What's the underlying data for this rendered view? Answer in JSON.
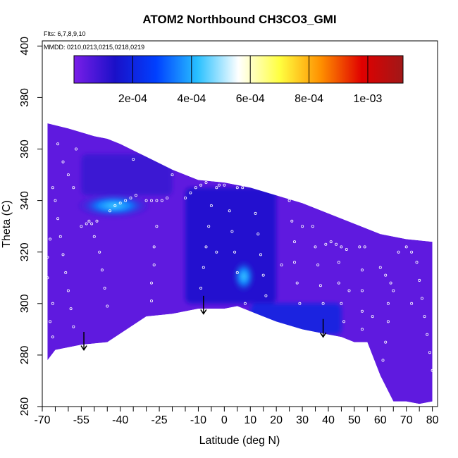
{
  "chart_data": {
    "type": "heatmap",
    "title": "ATOM2 Northbound CH3CO3_GMI",
    "annotations": {
      "flights": "Flts: 6,7,8,9,10",
      "dates": "MMDD: 0210,0213,0215,0218,0219"
    },
    "xlabel": "Latitude (deg N)",
    "ylabel": "Theta (C)",
    "xlim": [
      -70,
      82
    ],
    "ylim": [
      260,
      402
    ],
    "x_ticks": [
      -70,
      -55,
      -40,
      -25,
      -10,
      0,
      10,
      20,
      30,
      40,
      50,
      60,
      70,
      80
    ],
    "x_tick_labels": [
      "-70",
      "-55",
      "-40",
      "-25",
      "-10",
      "0",
      "10",
      "20",
      "30",
      "40",
      "50",
      "60",
      "70",
      "80"
    ],
    "x_minor_ticks": [
      -65,
      -60,
      -50,
      -45,
      -35,
      -30,
      -20,
      -15,
      -5,
      5,
      15,
      25,
      35,
      45,
      55,
      65,
      75
    ],
    "y_ticks": [
      260,
      280,
      300,
      320,
      340,
      360,
      380,
      400
    ],
    "y_tick_labels": [
      "260",
      "280",
      "300",
      "320",
      "340",
      "360",
      "380",
      "400"
    ],
    "colorbar": {
      "range": [
        0,
        0.00112
      ],
      "ticks": [
        0.0002,
        0.0004,
        0.0006,
        0.0008,
        0.001
      ],
      "tick_labels": [
        "2e-04",
        "4e-04",
        "6e-04",
        "8e-04",
        "1e-03"
      ],
      "colors": [
        "#7a1ee8",
        "#1a10c8",
        "#0040ff",
        "#28c0ff",
        "#ffffff",
        "#ffff40",
        "#ff9000",
        "#e00000",
        "#a01818"
      ]
    },
    "domain_top": [
      [
        -68,
        370
      ],
      [
        -60,
        368
      ],
      [
        -50,
        365
      ],
      [
        -45,
        364
      ],
      [
        -40,
        362
      ],
      [
        -30,
        357
      ],
      [
        -20,
        352
      ],
      [
        -10,
        348
      ],
      [
        0,
        347
      ],
      [
        10,
        345
      ],
      [
        20,
        342
      ],
      [
        30,
        339
      ],
      [
        40,
        335
      ],
      [
        50,
        331
      ],
      [
        60,
        327
      ],
      [
        70,
        325
      ],
      [
        80,
        324
      ]
    ],
    "domain_bottom": [
      [
        -68,
        278
      ],
      [
        -65,
        282
      ],
      [
        -55,
        284
      ],
      [
        -45,
        285
      ],
      [
        -30,
        295
      ],
      [
        -20,
        296
      ],
      [
        -10,
        298
      ],
      [
        0,
        298
      ],
      [
        5,
        299
      ],
      [
        15,
        295
      ],
      [
        20,
        293
      ],
      [
        30,
        290
      ],
      [
        40,
        288
      ],
      [
        45,
        287
      ],
      [
        50,
        285
      ],
      [
        55,
        285
      ],
      [
        60,
        272
      ],
      [
        65,
        262
      ],
      [
        70,
        262
      ],
      [
        75,
        261
      ],
      [
        80,
        262
      ]
    ],
    "background_value": 4e-05,
    "features": [
      {
        "name": "upper southern layer",
        "x": [
          -55,
          -20
        ],
        "y": [
          342,
          358
        ],
        "value": 0.0001
      },
      {
        "name": "southern upper maximum",
        "x": [
          -55,
          -30
        ],
        "y": [
          335,
          341
        ],
        "value": 0.0004
      },
      {
        "name": "central dark column",
        "x": [
          -15,
          20
        ],
        "y": [
          300,
          345
        ],
        "value": 0.00015
      },
      {
        "name": "equatorial maximum",
        "x": [
          5,
          10
        ],
        "y": [
          306,
          315
        ],
        "value": 0.0004
      },
      {
        "name": "lower northern band",
        "x": [
          10,
          45
        ],
        "y": [
          288,
          300
        ],
        "value": 0.0002
      }
    ],
    "arrows": [
      {
        "x": -54,
        "y_from": 289,
        "y_to": 282
      },
      {
        "x": -8,
        "y_from": 303,
        "y_to": 296
      },
      {
        "x": 38,
        "y_from": 294,
        "y_to": 287
      }
    ],
    "flight_track_points": [
      [
        -65,
        340
      ],
      [
        -64,
        333
      ],
      [
        -63,
        326
      ],
      [
        -62,
        319
      ],
      [
        -61,
        312
      ],
      [
        -60,
        305
      ],
      [
        -59,
        298
      ],
      [
        -58,
        291
      ],
      [
        -66,
        300
      ],
      [
        -67,
        293
      ],
      [
        -66,
        287
      ],
      [
        -62,
        355
      ],
      [
        -60,
        350
      ],
      [
        -58,
        345
      ],
      [
        -52,
        332
      ],
      [
        -50,
        326
      ],
      [
        -48,
        320
      ],
      [
        -47,
        313
      ],
      [
        -46,
        306
      ],
      [
        -45,
        299
      ],
      [
        -55,
        330
      ],
      [
        -53,
        331
      ],
      [
        -51,
        331
      ],
      [
        -49,
        332
      ],
      [
        -44,
        336
      ],
      [
        -42,
        338
      ],
      [
        -40,
        339
      ],
      [
        -38,
        340
      ],
      [
        -36,
        341
      ],
      [
        -34,
        342
      ],
      [
        -30,
        340
      ],
      [
        -28,
        340
      ],
      [
        -26,
        340
      ],
      [
        -24,
        340
      ],
      [
        -22,
        341
      ],
      [
        -26,
        330
      ],
      [
        -27,
        322
      ],
      [
        -27,
        315
      ],
      [
        -28,
        308
      ],
      [
        -28,
        301
      ],
      [
        -15,
        341
      ],
      [
        -13,
        343
      ],
      [
        -11,
        345
      ],
      [
        -9,
        346
      ],
      [
        -7,
        347
      ],
      [
        -5,
        338
      ],
      [
        -6,
        330
      ],
      [
        -7,
        322
      ],
      [
        -8,
        314
      ],
      [
        -9,
        306
      ],
      [
        -3,
        345
      ],
      [
        -2,
        346
      ],
      [
        0,
        346
      ],
      [
        2,
        336
      ],
      [
        3,
        328
      ],
      [
        4,
        320
      ],
      [
        5,
        312
      ],
      [
        5,
        345
      ],
      [
        7,
        345
      ],
      [
        10,
        346
      ],
      [
        14,
        346
      ],
      [
        16,
        345
      ],
      [
        18,
        344
      ],
      [
        12,
        335
      ],
      [
        13,
        327
      ],
      [
        14,
        319
      ],
      [
        15,
        311
      ],
      [
        16,
        303
      ],
      [
        25,
        340
      ],
      [
        26,
        332
      ],
      [
        27,
        324
      ],
      [
        27,
        316
      ],
      [
        28,
        308
      ],
      [
        29,
        300
      ],
      [
        32,
        339
      ],
      [
        34,
        330
      ],
      [
        35,
        322
      ],
      [
        36,
        315
      ],
      [
        37,
        307
      ],
      [
        38,
        300
      ],
      [
        39,
        323
      ],
      [
        41,
        324
      ],
      [
        43,
        323
      ],
      [
        45,
        322
      ],
      [
        47,
        321
      ],
      [
        44,
        316
      ],
      [
        44,
        308
      ],
      [
        45,
        300
      ],
      [
        46,
        293
      ],
      [
        52,
        322
      ],
      [
        54,
        322
      ],
      [
        53,
        313
      ],
      [
        53,
        305
      ],
      [
        53,
        297
      ],
      [
        53,
        290
      ],
      [
        60,
        314
      ],
      [
        62,
        311
      ],
      [
        64,
        308
      ],
      [
        65,
        305
      ],
      [
        63,
        300
      ],
      [
        63,
        293
      ],
      [
        62,
        285
      ],
      [
        61,
        278
      ],
      [
        70,
        322
      ],
      [
        72,
        320
      ],
      [
        74,
        316
      ],
      [
        75,
        309
      ],
      [
        76,
        302
      ],
      [
        77,
        295
      ],
      [
        78,
        288
      ],
      [
        79,
        281
      ],
      [
        80,
        274
      ],
      [
        81,
        267
      ],
      [
        -68,
        318
      ],
      [
        -68,
        310
      ],
      [
        -67,
        325
      ],
      [
        -66,
        345
      ],
      [
        -64,
        362
      ],
      [
        -57,
        360
      ],
      [
        -35,
        356
      ],
      [
        -20,
        350
      ],
      [
        -3,
        320
      ],
      [
        8,
        300
      ],
      [
        22,
        315
      ],
      [
        30,
        330
      ],
      [
        48,
        305
      ],
      [
        57,
        295
      ],
      [
        67,
        320
      ],
      [
        72,
        300
      ],
      [
        58,
        275
      ]
    ]
  }
}
